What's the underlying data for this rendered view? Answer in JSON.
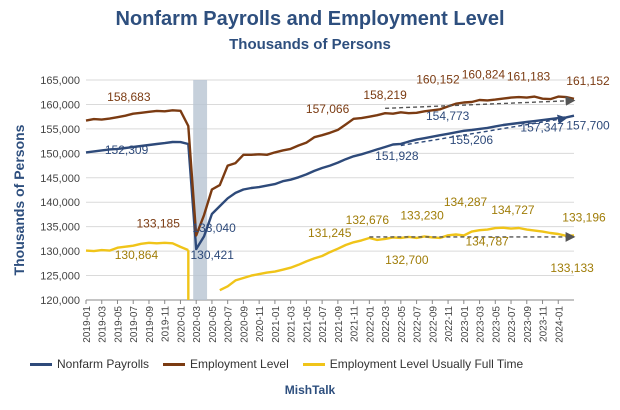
{
  "chart_data": {
    "type": "line",
    "title": "Nonfarm Payrolls and Employment Level",
    "subtitle": "Thousands of Persons",
    "ylabel": "Thousands of  Persons",
    "xlabel": "",
    "ylim": [
      120000,
      165000
    ],
    "yticks": [
      120000,
      125000,
      130000,
      135000,
      140000,
      145000,
      150000,
      155000,
      160000,
      165000
    ],
    "ytick_labels": [
      "120,000",
      "125,000",
      "130,000",
      "135,000",
      "140,000",
      "145,000",
      "150,000",
      "155,000",
      "160,000",
      "165,000"
    ],
    "x_start": "2019-01",
    "x_tick_labels": [
      "2019-01",
      "2019-03",
      "2019-05",
      "2019-07",
      "2019-09",
      "2019-11",
      "2020-01",
      "2020-03",
      "2020-05",
      "2020-07",
      "2020-09",
      "2020-11",
      "2021-01",
      "2021-03",
      "2021-05",
      "2021-07",
      "2021-09",
      "2021-11",
      "2022-01",
      "2022-03",
      "2022-05",
      "2022-07",
      "2022-09",
      "2022-11",
      "2023-01",
      "2023-03",
      "2023-05",
      "2023-07",
      "2023-09",
      "2023-11",
      "2024-01"
    ],
    "grid": true,
    "legend_position": "bottom",
    "shaded_period": [
      "2020-03",
      "2020-04"
    ],
    "series": [
      {
        "name": "Nonfarm Payrolls",
        "color": "#2e4a7a",
        "values": [
          150200,
          150400,
          150600,
          150800,
          150900,
          151100,
          151300,
          151500,
          151700,
          151900,
          152100,
          152309,
          152300,
          151900,
          130421,
          133040,
          137600,
          139200,
          140800,
          141900,
          142600,
          142900,
          143100,
          143400,
          143700,
          144300,
          144600,
          145100,
          145700,
          146400,
          147000,
          147500,
          148100,
          148800,
          149400,
          149800,
          150300,
          150800,
          151300,
          151800,
          151928,
          152400,
          152800,
          153100,
          153400,
          153700,
          154000,
          154300,
          154600,
          154773,
          155000,
          155206,
          155500,
          155800,
          156000,
          156200,
          156400,
          156600,
          156800,
          157000,
          157200,
          157347,
          157700
        ]
      },
      {
        "name": "Employment Level",
        "color": "#7b3b12",
        "values": [
          156700,
          157000,
          156900,
          157100,
          157400,
          157700,
          158100,
          158300,
          158500,
          158683,
          158600,
          158800,
          158700,
          155600,
          133185,
          137400,
          142600,
          143500,
          147500,
          148000,
          149700,
          149700,
          149800,
          149700,
          150200,
          150600,
          150900,
          151600,
          152200,
          153300,
          153700,
          154200,
          154800,
          155900,
          157066,
          157200,
          157500,
          157800,
          158219,
          158100,
          158400,
          158200,
          158300,
          158600,
          158800,
          159000,
          159600,
          160152,
          160400,
          160500,
          160900,
          160824,
          161000,
          161200,
          161400,
          161500,
          161400,
          161600,
          161183,
          161100,
          161600,
          161500,
          161152
        ]
      },
      {
        "name": "Employment Level Usually Full Time",
        "color": "#f0c419",
        "values": [
          130100,
          130000,
          130200,
          130100,
          130700,
          130900,
          131100,
          131500,
          131700,
          131600,
          131700,
          131600,
          130864,
          130200,
          null,
          null,
          null,
          122000,
          122800,
          124000,
          124500,
          125000,
          125300,
          125600,
          125800,
          126200,
          126600,
          127200,
          127900,
          128500,
          129000,
          129800,
          130500,
          131245,
          131800,
          132200,
          132676,
          132300,
          132500,
          132800,
          132700,
          132900,
          132700,
          133000,
          132800,
          132700,
          133230,
          133400,
          133200,
          134000,
          134287,
          134400,
          134700,
          134787,
          134600,
          134727,
          134400,
          134200,
          134000,
          133700,
          133500,
          133133,
          133196
        ]
      }
    ],
    "annotations": [
      {
        "text": "158,683",
        "series": 1,
        "x_index": 9
      },
      {
        "text": "152,309",
        "series": 0,
        "x_index": 11
      },
      {
        "text": "133,185",
        "series": 1,
        "x_index": 14
      },
      {
        "text": "130,864",
        "series": 2,
        "x_index": 12
      },
      {
        "text": "133,040",
        "series": 0,
        "x_index": 15
      },
      {
        "text": "130,421",
        "series": 0,
        "x_index": 14
      },
      {
        "text": "131,245",
        "series": 2,
        "x_index": 33
      },
      {
        "text": "157,066",
        "series": 1,
        "x_index": 34
      },
      {
        "text": "158,219",
        "series": 1,
        "x_index": 38
      },
      {
        "text": "151,928",
        "series": 0,
        "x_index": 40
      },
      {
        "text": "132,676",
        "series": 2,
        "x_index": 36
      },
      {
        "text": "132,700",
        "series": 2,
        "x_index": 40
      },
      {
        "text": "160,152",
        "series": 1,
        "x_index": 47
      },
      {
        "text": "154,773",
        "series": 0,
        "x_index": 49
      },
      {
        "text": "133,230",
        "series": 2,
        "x_index": 46
      },
      {
        "text": "160,824",
        "series": 1,
        "x_index": 51
      },
      {
        "text": "155,206",
        "series": 0,
        "x_index": 51
      },
      {
        "text": "134,287",
        "series": 2,
        "x_index": 50
      },
      {
        "text": "134,787",
        "series": 2,
        "x_index": 53
      },
      {
        "text": "134,727",
        "series": 2,
        "x_index": 55
      },
      {
        "text": "161,183",
        "series": 1,
        "x_index": 58
      },
      {
        "text": "161,152",
        "series": 1,
        "x_index": 62
      },
      {
        "text": "157,347",
        "series": 0,
        "x_index": 61
      },
      {
        "text": "157,700",
        "series": 0,
        "x_index": 62
      },
      {
        "text": "133,196",
        "series": 2,
        "x_index": 62
      },
      {
        "text": "133,133",
        "series": 2,
        "x_index": 61
      }
    ]
  },
  "source_label": "MishTalk"
}
